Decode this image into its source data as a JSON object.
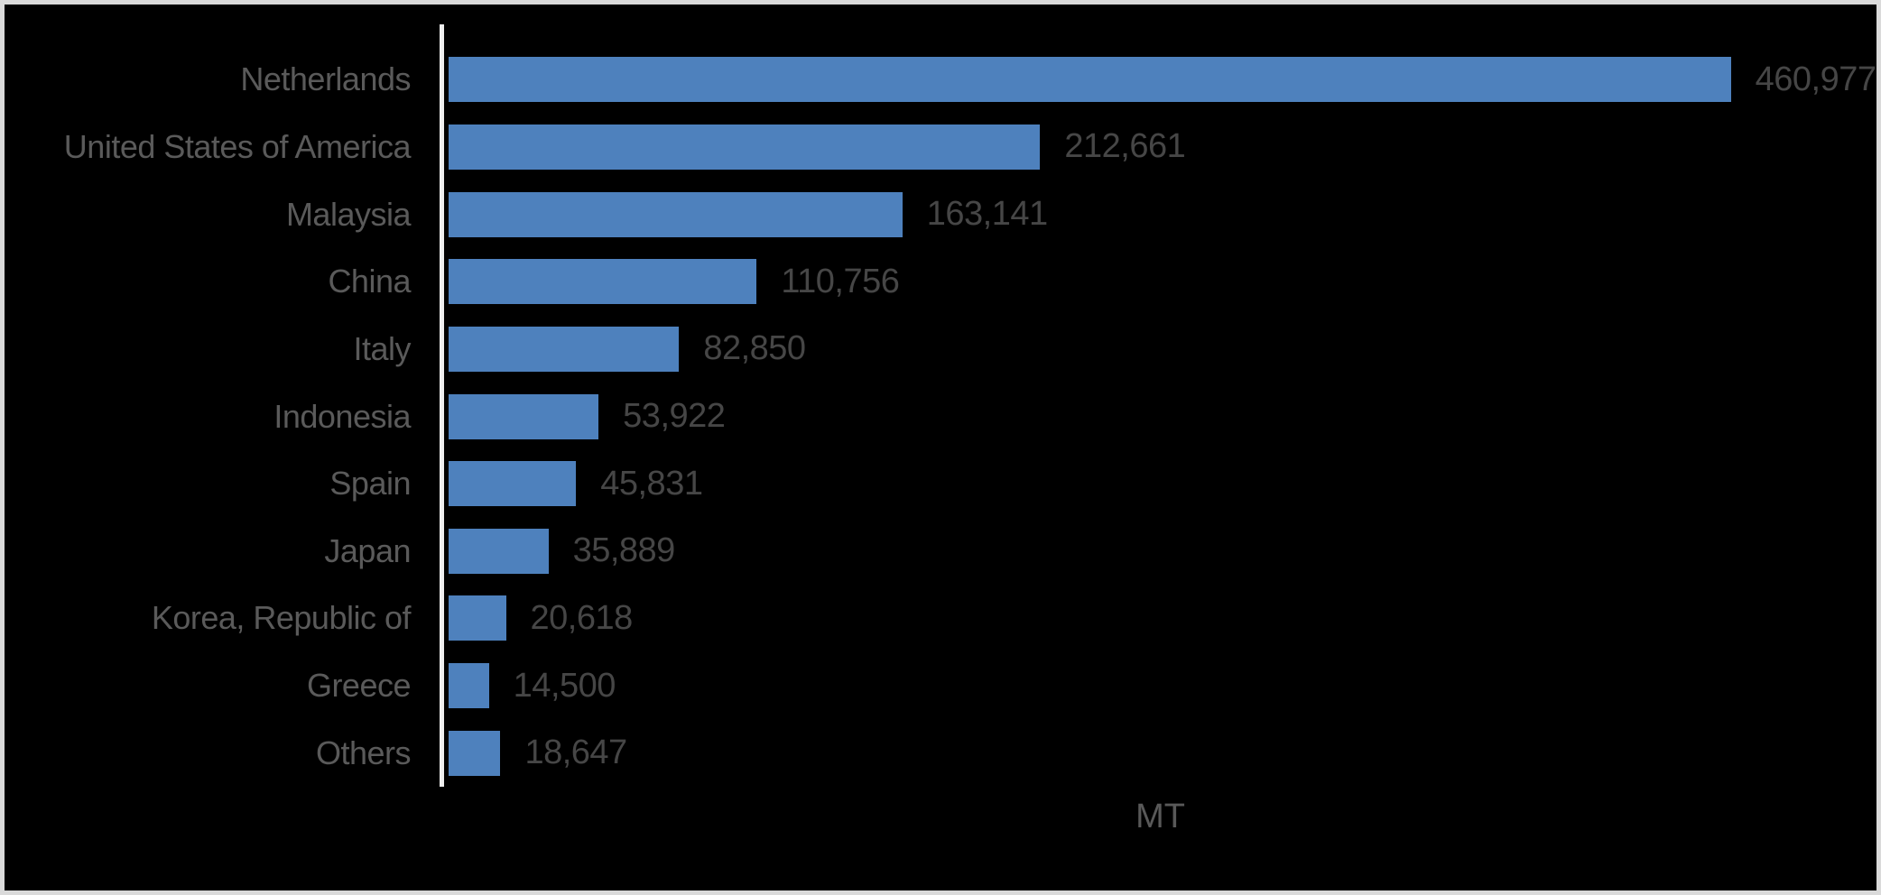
{
  "chart_data": {
    "type": "bar",
    "orientation": "horizontal",
    "title": "",
    "xlabel": "MT",
    "ylabel": "",
    "grid": false,
    "legend_position": "none",
    "categories": [
      "Netherlands",
      "United States of America",
      "Malaysia",
      "China",
      "Italy",
      "Indonesia",
      "Spain",
      "Japan",
      "Korea, Republic of",
      "Greece",
      "Others"
    ],
    "values": [
      460977,
      212661,
      163141,
      110756,
      82850,
      53922,
      45831,
      35889,
      20618,
      14500,
      18647
    ],
    "value_labels": [
      "460,977",
      "212,661",
      "163,141",
      "110,756",
      "82,850",
      "53,922",
      "45,831",
      "35,889",
      "20,618",
      "14,500",
      "18,647"
    ],
    "xlim": [
      0,
      460977
    ]
  },
  "colors": {
    "background": "#000000",
    "frame_border": "#dadada",
    "bar_fill": "#4e81bd",
    "axis_line": "#efefef",
    "category_label": "#5a5a5a",
    "value_label": "#464646",
    "axis_title": "#595959"
  }
}
